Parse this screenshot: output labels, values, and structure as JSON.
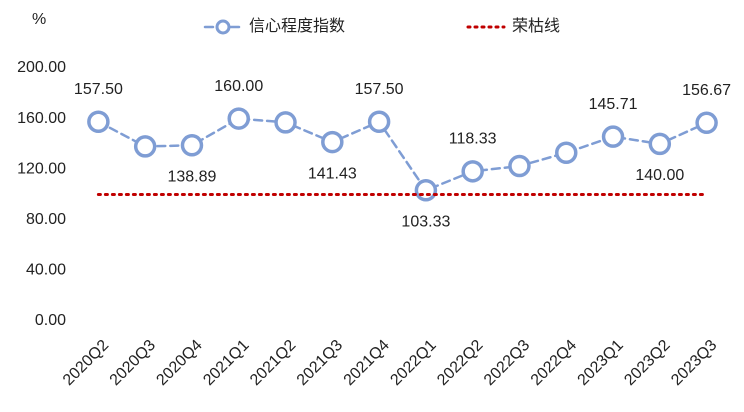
{
  "chart_data": {
    "type": "line",
    "y_unit": "%",
    "categories": [
      "2020Q2",
      "2020Q3",
      "2020Q4",
      "2021Q1",
      "2021Q2",
      "2021Q3",
      "2021Q4",
      "2022Q1",
      "2022Q2",
      "2022Q3",
      "2022Q4",
      "2023Q1",
      "2023Q2",
      "2023Q3"
    ],
    "series": [
      {
        "name": "信心程度指数",
        "color": "#7f9dd4",
        "style": "dashed",
        "marker": true,
        "values": [
          157.5,
          138,
          138.89,
          160,
          157,
          141.43,
          157.5,
          103.33,
          118.33,
          122.5,
          133,
          145.71,
          140,
          156.67
        ],
        "value_labels": [
          "157.50",
          null,
          "138.89",
          "160.00",
          null,
          "141.43",
          "157.50",
          "103.33",
          "118.33",
          null,
          null,
          "145.71",
          "140.00",
          "156.67"
        ]
      },
      {
        "name": "荣枯线",
        "color": "#c00000",
        "style": "dotted",
        "marker": false,
        "values": [
          100,
          100,
          100,
          100,
          100,
          100,
          100,
          100,
          100,
          100,
          100,
          100,
          100,
          100
        ]
      }
    ],
    "ylim": [
      0,
      200
    ],
    "yticks": [
      {
        "value": 0,
        "label": "0.00"
      },
      {
        "value": 40,
        "label": "40.00"
      },
      {
        "value": 80,
        "label": "80.00"
      },
      {
        "value": 120,
        "label": "120.00"
      },
      {
        "value": 160,
        "label": "160.00"
      },
      {
        "value": 200,
        "label": "200.00"
      }
    ],
    "grid": false
  }
}
